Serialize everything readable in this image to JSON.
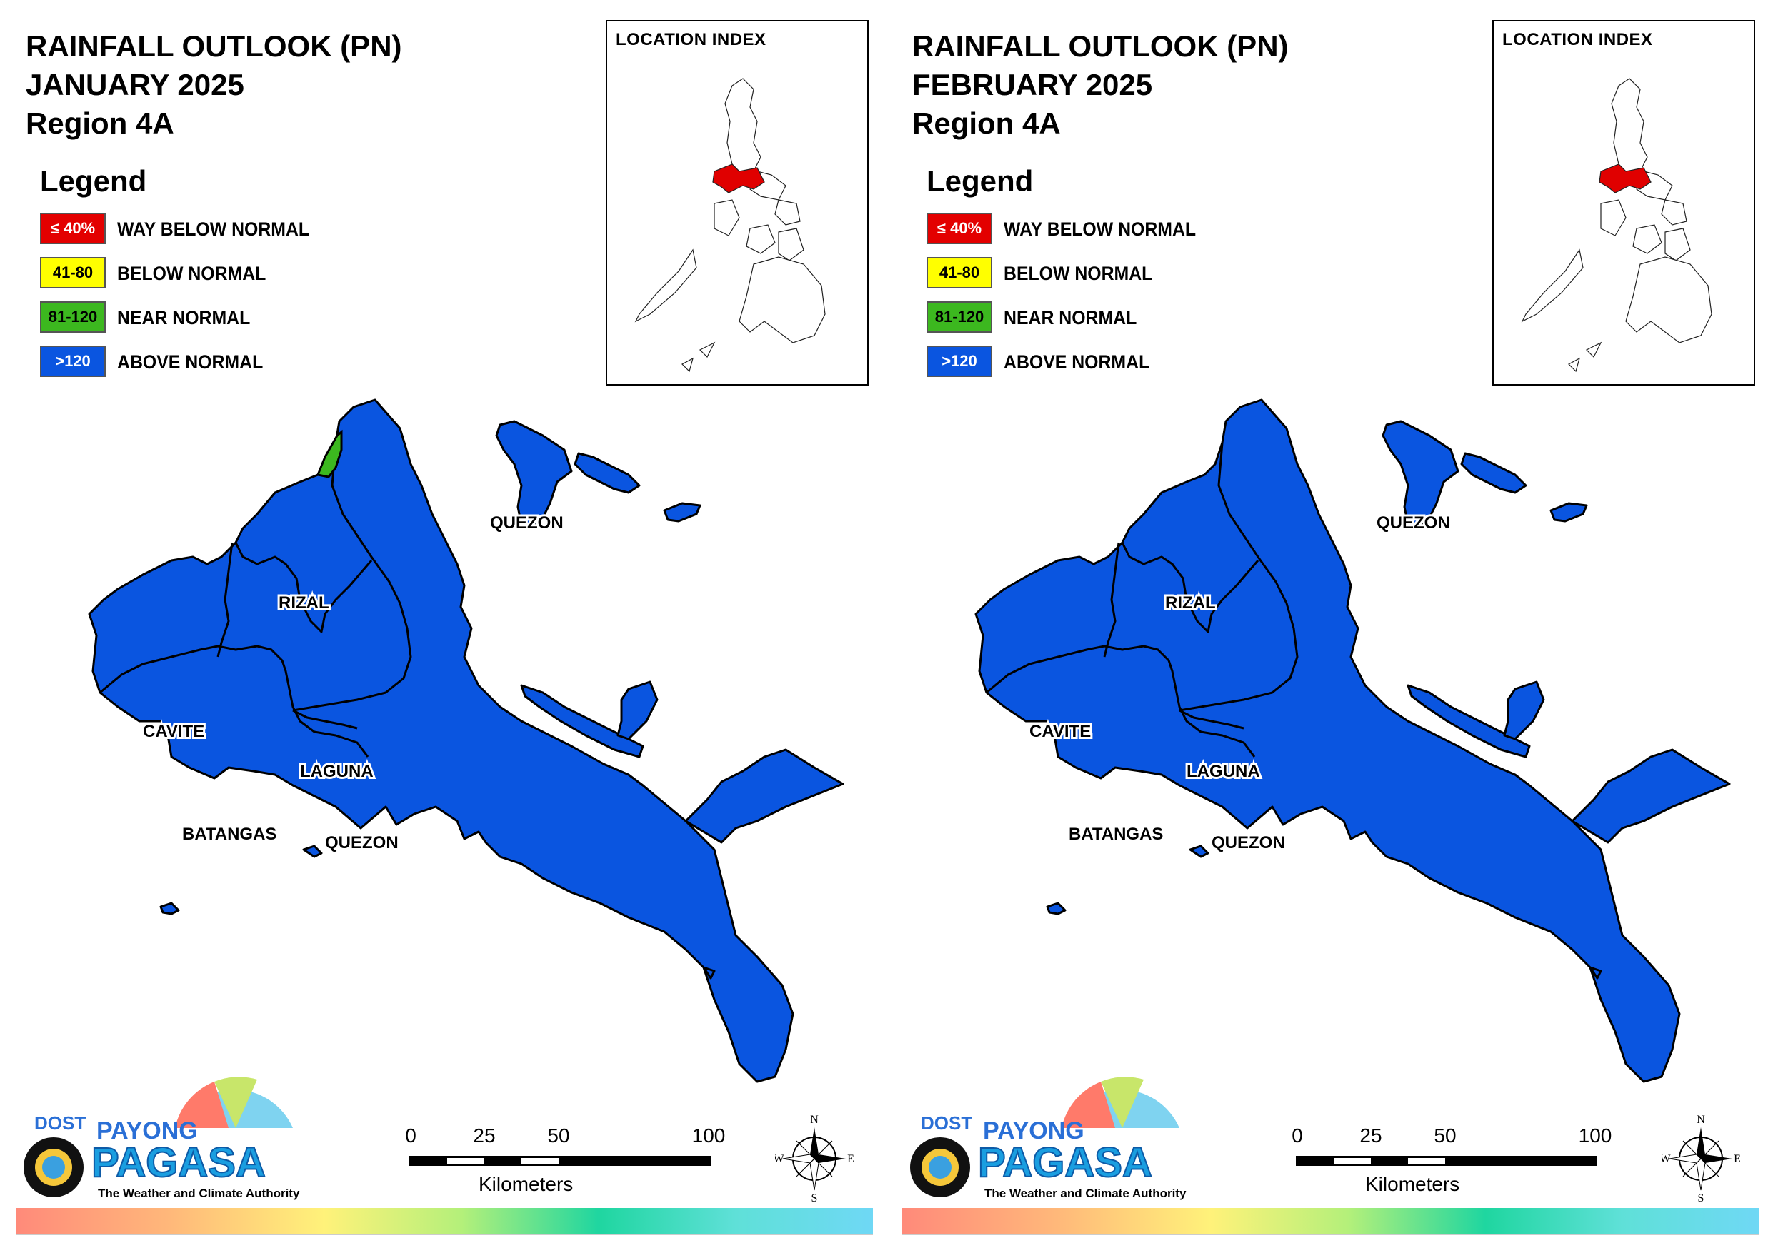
{
  "colors": {
    "way_below": "#e30000",
    "below": "#ffff00",
    "near": "#3cb81f",
    "above": "#0a55e0",
    "region_highlight": "#e00000"
  },
  "panels": [
    {
      "title_line1": "RAINFALL OUTLOOK (PN)",
      "title_line2": "JANUARY 2025",
      "title_line3": "Region 4A",
      "has_green_patch": true
    },
    {
      "title_line1": "RAINFALL OUTLOOK (PN)",
      "title_line2": "FEBRUARY 2025",
      "title_line3": "Region 4A",
      "has_green_patch": false
    }
  ],
  "legend": {
    "title": "Legend",
    "items": [
      {
        "range": "≤ 40%",
        "label": "WAY BELOW NORMAL",
        "color": "#e30000",
        "text_color": "#ffffff"
      },
      {
        "range": "41-80",
        "label": "BELOW NORMAL",
        "color": "#ffff00",
        "text_color": "#000000"
      },
      {
        "range": "81-120",
        "label": "NEAR NORMAL",
        "color": "#3cb81f",
        "text_color": "#000000"
      },
      {
        "range": ">120",
        "label": "ABOVE NORMAL",
        "color": "#0a55e0",
        "text_color": "#ffffff"
      }
    ]
  },
  "location_index": {
    "title": "LOCATION INDEX"
  },
  "provinces": {
    "quezon_north": "QUEZON",
    "rizal": "RIZAL",
    "cavite": "CAVITE",
    "laguna": "LAGUNA",
    "batangas": "BATANGAS",
    "quezon_south": "QUEZON"
  },
  "scale": {
    "ticks": [
      "0",
      "25",
      "50",
      "100"
    ],
    "unit": "Kilometers"
  },
  "compass": {
    "n": "N",
    "s": "S",
    "e": "E",
    "w": "W"
  },
  "logo": {
    "dost": "DOST",
    "payong": "PAYONG",
    "pagasa": "PAGASA",
    "tagline": "The Weather and Climate Authority"
  }
}
